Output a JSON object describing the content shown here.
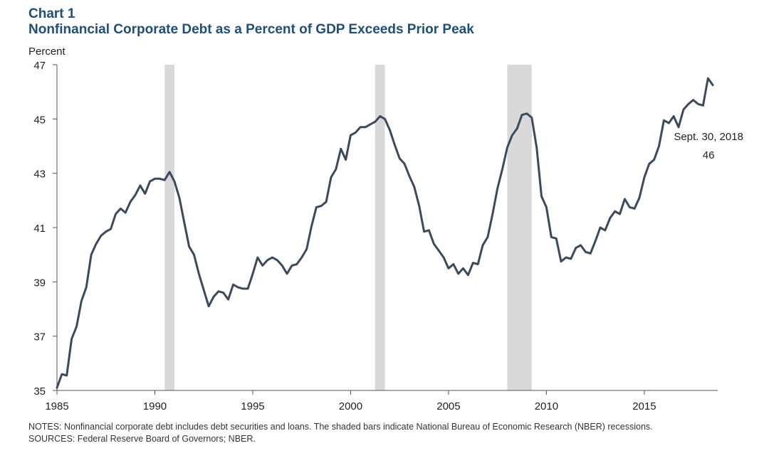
{
  "header": {
    "chart_label": "Chart 1",
    "title": "Nonfinancial Corporate Debt as a Percent of GDP Exceeds Prior Peak",
    "ylabel": "Percent"
  },
  "notes": {
    "notes_text": "NOTES:  Nonfinancial corporate debt includes debt securities and loans. The shaded bars indicate National Bureau of Economic Research (NBER) recessions.",
    "sources_text": "SOURCES:  Federal Reserve Board of Governors; NBER."
  },
  "colors": {
    "line": "#3b4a5c",
    "recession": "#d9d9d9",
    "axis": "#555555",
    "title": "#1f4e79"
  },
  "chart_data": {
    "type": "line",
    "title": "Nonfinancial Corporate Debt as a Percent of GDP Exceeds Prior Peak",
    "ylabel": "Percent",
    "xlabel": "",
    "xlim": [
      1985,
      2018.75
    ],
    "ylim": [
      35,
      47
    ],
    "yticks": [
      35,
      37,
      39,
      41,
      43,
      45,
      47
    ],
    "xticks": [
      1985,
      1990,
      1995,
      2000,
      2005,
      2010,
      2015
    ],
    "recessions": [
      {
        "start": 1990.5,
        "end": 1991.0
      },
      {
        "start": 2001.25,
        "end": 2001.75
      },
      {
        "start": 2008.0,
        "end": 2009.25
      }
    ],
    "annotation": {
      "x": 2018.5,
      "y": 46.2,
      "line1": "Sept. 30, 2018",
      "line2": "46"
    },
    "series": [
      {
        "name": "Nonfinancial corporate debt as % of GDP",
        "x": [
          1985.0,
          1985.25,
          1985.5,
          1985.75,
          1986.0,
          1986.25,
          1986.5,
          1986.75,
          1987.0,
          1987.25,
          1987.5,
          1987.75,
          1988.0,
          1988.25,
          1988.5,
          1988.75,
          1989.0,
          1989.25,
          1989.5,
          1989.75,
          1990.0,
          1990.25,
          1990.5,
          1990.75,
          1991.0,
          1991.25,
          1991.5,
          1991.75,
          1992.0,
          1992.25,
          1992.5,
          1992.75,
          1993.0,
          1993.25,
          1993.5,
          1993.75,
          1994.0,
          1994.25,
          1994.5,
          1994.75,
          1995.0,
          1995.25,
          1995.5,
          1995.75,
          1996.0,
          1996.25,
          1996.5,
          1996.75,
          1997.0,
          1997.25,
          1997.5,
          1997.75,
          1998.0,
          1998.25,
          1998.5,
          1998.75,
          1999.0,
          1999.25,
          1999.5,
          1999.75,
          2000.0,
          2000.25,
          2000.5,
          2000.75,
          2001.0,
          2001.25,
          2001.5,
          2001.75,
          2002.0,
          2002.25,
          2002.5,
          2002.75,
          2003.0,
          2003.25,
          2003.5,
          2003.75,
          2004.0,
          2004.25,
          2004.5,
          2004.75,
          2005.0,
          2005.25,
          2005.5,
          2005.75,
          2006.0,
          2006.25,
          2006.5,
          2006.75,
          2007.0,
          2007.25,
          2007.5,
          2007.75,
          2008.0,
          2008.25,
          2008.5,
          2008.75,
          2009.0,
          2009.25,
          2009.5,
          2009.75,
          2010.0,
          2010.25,
          2010.5,
          2010.75,
          2011.0,
          2011.25,
          2011.5,
          2011.75,
          2012.0,
          2012.25,
          2012.5,
          2012.75,
          2013.0,
          2013.25,
          2013.5,
          2013.75,
          2014.0,
          2014.25,
          2014.5,
          2014.75,
          2015.0,
          2015.25,
          2015.5,
          2015.75,
          2016.0,
          2016.25,
          2016.5,
          2016.75,
          2017.0,
          2017.25,
          2017.5,
          2017.75,
          2018.0,
          2018.25,
          2018.5
        ],
        "values": [
          35.1,
          35.6,
          35.55,
          36.9,
          37.35,
          38.3,
          38.8,
          40.0,
          40.4,
          40.7,
          40.85,
          40.95,
          41.5,
          41.7,
          41.55,
          41.95,
          42.2,
          42.55,
          42.25,
          42.7,
          42.8,
          42.8,
          42.75,
          43.05,
          42.7,
          42.1,
          41.2,
          40.3,
          40.0,
          39.3,
          38.7,
          38.1,
          38.45,
          38.65,
          38.6,
          38.35,
          38.9,
          38.8,
          38.75,
          38.75,
          39.3,
          39.9,
          39.6,
          39.8,
          39.9,
          39.8,
          39.6,
          39.3,
          39.6,
          39.65,
          39.9,
          40.2,
          41.05,
          41.75,
          41.8,
          41.95,
          42.85,
          43.15,
          43.9,
          43.5,
          44.4,
          44.5,
          44.7,
          44.7,
          44.8,
          44.9,
          45.1,
          45.0,
          44.6,
          44.05,
          43.55,
          43.35,
          42.9,
          42.5,
          41.8,
          40.85,
          40.9,
          40.4,
          40.15,
          39.9,
          39.5,
          39.65,
          39.3,
          39.5,
          39.25,
          39.7,
          39.65,
          40.35,
          40.65,
          41.5,
          42.45,
          43.15,
          43.95,
          44.4,
          44.65,
          45.15,
          45.2,
          45.05,
          43.95,
          42.15,
          41.75,
          40.65,
          40.6,
          39.75,
          39.9,
          39.85,
          40.25,
          40.35,
          40.1,
          40.05,
          40.5,
          41.0,
          40.9,
          41.35,
          41.6,
          41.5,
          42.05,
          41.75,
          41.7,
          42.1,
          42.85,
          43.35,
          43.5,
          44.0,
          44.95,
          44.85,
          45.1,
          44.7,
          45.35,
          45.55,
          45.7,
          45.55,
          45.5,
          46.5,
          46.25
        ]
      }
    ]
  }
}
